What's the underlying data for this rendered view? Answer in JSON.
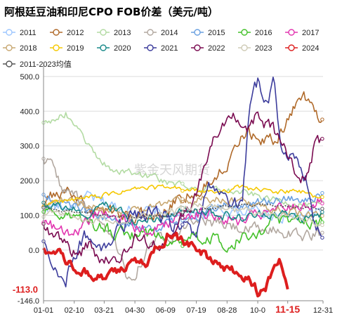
{
  "chart_data": {
    "type": "line",
    "title": "阿根廷豆油和印尼CPO FOB价差（美元/吨）",
    "xlabel": "",
    "ylabel": "",
    "x_ticks": [
      "01-01",
      "02-10",
      "03-21",
      "04-30",
      "06-09",
      "07-19",
      "08-28",
      "10-0",
      "11-15",
      "12-31"
    ],
    "x_tick_positions": [
      1,
      41,
      80,
      120,
      160,
      200,
      240,
      280,
      319,
      365
    ],
    "highlight_tick": "11-15",
    "y_ticks": [
      500.0,
      400.0,
      300.0,
      200.0,
      100.0,
      0.0
    ],
    "ylim": [
      -146.0,
      520
    ],
    "ymin_label": "-146.0",
    "current_value_label": "-113.0",
    "current_value": -113.0,
    "current_day": 319,
    "watermark": "紫金天风期货",
    "legend": [
      "2011",
      "2012",
      "2013",
      "2014",
      "2015",
      "2016",
      "2017",
      "2018",
      "2019",
      "2020",
      "2021",
      "2022",
      "2023",
      "2024",
      "2011-2023均值"
    ],
    "series": [
      {
        "name": "2011",
        "color": "#9ec7ff",
        "marker": "circle",
        "anchors": [
          [
            0,
            130
          ],
          [
            30,
            120
          ],
          [
            60,
            150
          ],
          [
            100,
            120
          ],
          [
            140,
            110
          ],
          [
            180,
            95
          ],
          [
            220,
            110
          ],
          [
            260,
            115
          ],
          [
            300,
            105
          ],
          [
            330,
            95
          ],
          [
            365,
            110
          ]
        ],
        "noise": 18
      },
      {
        "name": "2012",
        "color": "#b06a2a",
        "marker": "circle",
        "anchors": [
          [
            0,
            140
          ],
          [
            30,
            170
          ],
          [
            60,
            120
          ],
          [
            90,
            110
          ],
          [
            120,
            95
          ],
          [
            150,
            105
          ],
          [
            180,
            150
          ],
          [
            200,
            170
          ],
          [
            220,
            200
          ],
          [
            240,
            260
          ],
          [
            260,
            350
          ],
          [
            280,
            330
          ],
          [
            300,
            310
          ],
          [
            320,
            380
          ],
          [
            335,
            450
          ],
          [
            350,
            420
          ],
          [
            365,
            360
          ]
        ],
        "noise": 20
      },
      {
        "name": "2013",
        "color": "#b3dba3",
        "marker": "circle",
        "anchors": [
          [
            0,
            370
          ],
          [
            20,
            380
          ],
          [
            30,
            395
          ],
          [
            50,
            330
          ],
          [
            70,
            270
          ],
          [
            90,
            230
          ],
          [
            110,
            225
          ],
          [
            130,
            215
          ],
          [
            150,
            205
          ],
          [
            170,
            190
          ],
          [
            190,
            185
          ],
          [
            210,
            175
          ],
          [
            240,
            170
          ],
          [
            260,
            165
          ],
          [
            280,
            155
          ],
          [
            300,
            145
          ],
          [
            320,
            140
          ],
          [
            340,
            130
          ],
          [
            365,
            125
          ]
        ],
        "noise": 10
      },
      {
        "name": "2014",
        "color": "#b2a8a0",
        "marker": "circle",
        "anchors": [
          [
            0,
            260
          ],
          [
            10,
            250
          ],
          [
            25,
            180
          ],
          [
            45,
            150
          ],
          [
            65,
            90
          ],
          [
            85,
            40
          ],
          [
            100,
            0
          ],
          [
            110,
            -80
          ],
          [
            120,
            -60
          ],
          [
            140,
            20
          ],
          [
            160,
            40
          ],
          [
            180,
            70
          ],
          [
            200,
            90
          ],
          [
            220,
            80
          ],
          [
            240,
            70
          ],
          [
            260,
            60
          ],
          [
            280,
            55
          ],
          [
            300,
            60
          ],
          [
            320,
            50
          ],
          [
            340,
            40
          ],
          [
            365,
            45
          ]
        ],
        "noise": 18
      },
      {
        "name": "2015",
        "color": "#6aa0e0",
        "marker": "circle",
        "anchors": [
          [
            0,
            150
          ],
          [
            30,
            140
          ],
          [
            60,
            100
          ],
          [
            90,
            90
          ],
          [
            120,
            70
          ],
          [
            150,
            60
          ],
          [
            180,
            80
          ],
          [
            210,
            110
          ],
          [
            240,
            130
          ],
          [
            270,
            135
          ],
          [
            300,
            140
          ],
          [
            330,
            150
          ],
          [
            365,
            160
          ]
        ],
        "noise": 15
      },
      {
        "name": "2016",
        "color": "#44c12a",
        "marker": "circle",
        "anchors": [
          [
            0,
            120
          ],
          [
            20,
            110
          ],
          [
            40,
            90
          ],
          [
            60,
            70
          ],
          [
            80,
            60
          ],
          [
            100,
            50
          ],
          [
            120,
            45
          ],
          [
            150,
            40
          ],
          [
            180,
            30
          ],
          [
            210,
            40
          ],
          [
            240,
            20
          ],
          [
            260,
            40
          ],
          [
            280,
            60
          ],
          [
            300,
            80
          ],
          [
            320,
            70
          ],
          [
            340,
            90
          ],
          [
            365,
            80
          ]
        ],
        "noise": 20
      },
      {
        "name": "2017",
        "color": "#e235b0",
        "marker": "circle",
        "anchors": [
          [
            0,
            80
          ],
          [
            20,
            60
          ],
          [
            40,
            40
          ],
          [
            60,
            90
          ],
          [
            80,
            110
          ],
          [
            100,
            90
          ],
          [
            120,
            70
          ],
          [
            140,
            60
          ],
          [
            160,
            80
          ],
          [
            180,
            100
          ],
          [
            200,
            110
          ],
          [
            220,
            100
          ],
          [
            240,
            90
          ],
          [
            260,
            80
          ],
          [
            280,
            100
          ],
          [
            300,
            110
          ],
          [
            320,
            120
          ],
          [
            340,
            130
          ],
          [
            365,
            140
          ]
        ],
        "noise": 18
      },
      {
        "name": "2018",
        "color": "#c8a872",
        "marker": "circle",
        "anchors": [
          [
            0,
            130
          ],
          [
            30,
            140
          ],
          [
            60,
            130
          ],
          [
            90,
            110
          ],
          [
            120,
            120
          ],
          [
            150,
            130
          ],
          [
            180,
            140
          ],
          [
            210,
            150
          ],
          [
            240,
            145
          ],
          [
            270,
            130
          ],
          [
            300,
            120
          ],
          [
            330,
            110
          ],
          [
            365,
            100
          ]
        ],
        "noise": 12
      },
      {
        "name": "2019",
        "color": "#f5c800",
        "marker": "circle",
        "anchors": [
          [
            0,
            130
          ],
          [
            30,
            140
          ],
          [
            60,
            150
          ],
          [
            90,
            160
          ],
          [
            120,
            175
          ],
          [
            150,
            180
          ],
          [
            180,
            175
          ],
          [
            200,
            170
          ],
          [
            220,
            165
          ],
          [
            240,
            175
          ],
          [
            260,
            180
          ],
          [
            280,
            175
          ],
          [
            300,
            165
          ],
          [
            320,
            170
          ],
          [
            340,
            165
          ],
          [
            365,
            150
          ]
        ],
        "noise": 8
      },
      {
        "name": "2020",
        "color": "#1a8a8a",
        "marker": "circle",
        "anchors": [
          [
            0,
            140
          ],
          [
            30,
            120
          ],
          [
            60,
            100
          ],
          [
            80,
            130
          ],
          [
            100,
            110
          ],
          [
            120,
            80
          ],
          [
            140,
            90
          ],
          [
            160,
            100
          ],
          [
            180,
            110
          ],
          [
            200,
            120
          ],
          [
            220,
            110
          ],
          [
            240,
            100
          ],
          [
            260,
            90
          ],
          [
            280,
            100
          ],
          [
            300,
            110
          ],
          [
            320,
            100
          ],
          [
            340,
            90
          ],
          [
            365,
            100
          ]
        ],
        "noise": 14
      },
      {
        "name": "2021",
        "color": "#3c3c9c",
        "marker": "circle",
        "anchors": [
          [
            0,
            20
          ],
          [
            10,
            -30
          ],
          [
            20,
            -60
          ],
          [
            30,
            -80
          ],
          [
            40,
            -20
          ],
          [
            55,
            40
          ],
          [
            70,
            20
          ],
          [
            85,
            -10
          ],
          [
            100,
            60
          ],
          [
            120,
            100
          ],
          [
            140,
            110
          ],
          [
            160,
            90
          ],
          [
            180,
            60
          ],
          [
            200,
            40
          ],
          [
            210,
            160
          ],
          [
            220,
            190
          ],
          [
            240,
            150
          ],
          [
            260,
            120
          ],
          [
            270,
            420
          ],
          [
            280,
            480
          ],
          [
            285,
            460
          ],
          [
            295,
            430
          ],
          [
            300,
            520
          ],
          [
            310,
            300
          ],
          [
            320,
            280
          ],
          [
            330,
            250
          ],
          [
            345,
            200
          ],
          [
            355,
            60
          ],
          [
            365,
            50
          ]
        ],
        "noise": 22
      },
      {
        "name": "2022",
        "color": "#7a0a50",
        "marker": "circle",
        "anchors": [
          [
            0,
            60
          ],
          [
            20,
            40
          ],
          [
            40,
            -10
          ],
          [
            60,
            10
          ],
          [
            80,
            -40
          ],
          [
            100,
            -20
          ],
          [
            120,
            30
          ],
          [
            150,
            10
          ],
          [
            170,
            60
          ],
          [
            190,
            120
          ],
          [
            200,
            160
          ],
          [
            210,
            230
          ],
          [
            220,
            300
          ],
          [
            230,
            360
          ],
          [
            240,
            390
          ],
          [
            250,
            380
          ],
          [
            260,
            370
          ],
          [
            270,
            360
          ],
          [
            280,
            390
          ],
          [
            290,
            370
          ],
          [
            300,
            350
          ],
          [
            310,
            300
          ],
          [
            320,
            260
          ],
          [
            330,
            220
          ],
          [
            340,
            200
          ],
          [
            350,
            250
          ],
          [
            355,
            320
          ],
          [
            365,
            310
          ]
        ],
        "noise": 22
      },
      {
        "name": "2023",
        "color": "#cfcbb6",
        "marker": "circle",
        "anchors": [
          [
            0,
            100
          ],
          [
            30,
            110
          ],
          [
            60,
            90
          ],
          [
            90,
            80
          ],
          [
            120,
            90
          ],
          [
            150,
            100
          ],
          [
            180,
            120
          ],
          [
            210,
            130
          ],
          [
            240,
            120
          ],
          [
            270,
            110
          ],
          [
            300,
            100
          ],
          [
            330,
            90
          ],
          [
            365,
            80
          ]
        ],
        "noise": 10
      },
      {
        "name": "2024",
        "color": "#dd1e1e",
        "marker": "circle",
        "anchors": [
          [
            0,
            5
          ],
          [
            20,
            -10
          ],
          [
            40,
            -50
          ],
          [
            60,
            -70
          ],
          [
            80,
            -80
          ],
          [
            100,
            -60
          ],
          [
            120,
            -40
          ],
          [
            135,
            -40
          ],
          [
            150,
            10
          ],
          [
            165,
            50
          ],
          [
            180,
            30
          ],
          [
            200,
            0
          ],
          [
            215,
            -20
          ],
          [
            230,
            -40
          ],
          [
            250,
            -60
          ],
          [
            270,
            -80
          ],
          [
            280,
            -120
          ],
          [
            290,
            -110
          ],
          [
            300,
            -50
          ],
          [
            308,
            -20
          ],
          [
            315,
            -90
          ],
          [
            319,
            -113
          ]
        ],
        "noise": 14,
        "thick": true
      },
      {
        "name": "2011-2023均值",
        "color": "#555555",
        "marker": "circle",
        "dashed": true,
        "anchors": [
          [
            0,
            120
          ],
          [
            40,
            110
          ],
          [
            80,
            100
          ],
          [
            120,
            95
          ],
          [
            160,
            100
          ],
          [
            200,
            115
          ],
          [
            240,
            125
          ],
          [
            280,
            130
          ],
          [
            320,
            125
          ],
          [
            365,
            120
          ]
        ],
        "noise": 4
      }
    ]
  }
}
